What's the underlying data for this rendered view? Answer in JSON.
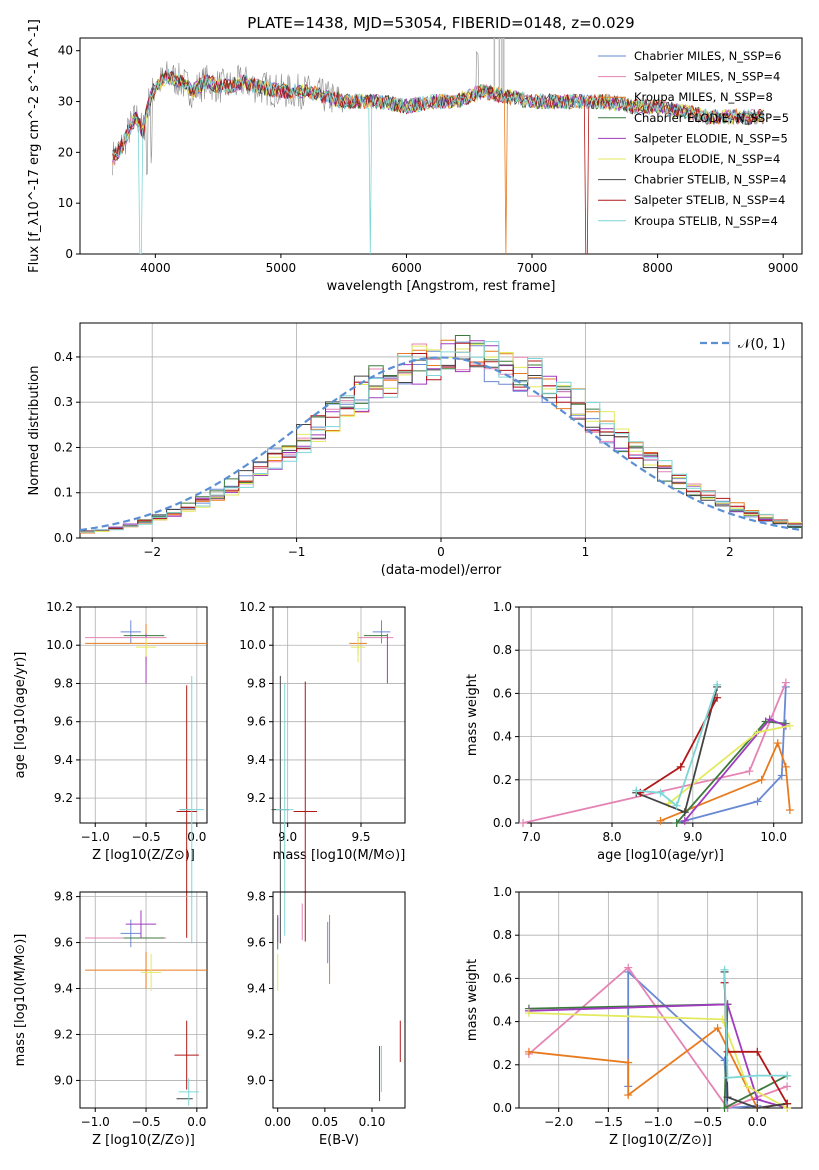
{
  "figure_title": "PLATE=1438, MJD=53054, FIBERID=0148, z=0.029",
  "series_colors": [
    "#6a89d3",
    "#e583b5",
    "#e87b1f",
    "#3c7a3c",
    "#a13bbf",
    "#e3ea5e",
    "#444444",
    "#b01818",
    "#7fd6d6"
  ],
  "chart_data": [
    {
      "type": "line",
      "panel": "spectrum",
      "xlabel": "wavelength [Angstrom, rest frame]",
      "ylabel": "Flux [f_λ10^-17 erg cm^-2 s^-1 A^-1]",
      "xlim": [
        3400,
        9150
      ],
      "ylim": [
        0,
        42.5
      ],
      "xticks": [
        4000,
        5000,
        6000,
        7000,
        8000,
        9000
      ],
      "yticks": [
        0,
        10,
        20,
        30,
        40
      ],
      "grid": false,
      "legend_position": "top-right",
      "series": [
        {
          "name": "Chabrier MILES, N_SSP=6"
        },
        {
          "name": "Salpeter MILES, N_SSP=4"
        },
        {
          "name": "Kroupa MILES, N_SSP=8"
        },
        {
          "name": "Chabrier ELODIE, N_SSP=5"
        },
        {
          "name": "Salpeter ELODIE, N_SSP=5"
        },
        {
          "name": "Kroupa ELODIE, N_SSP=4"
        },
        {
          "name": "Chabrier STELIB, N_SSP=4"
        },
        {
          "name": "Salpeter STELIB, N_SSP=4"
        },
        {
          "name": "Kroupa STELIB, N_SSP=4"
        }
      ],
      "continuum_x": [
        3660,
        3700,
        3750,
        3800,
        3850,
        3900,
        3950,
        4000,
        4100,
        4200,
        4300,
        4400,
        4500,
        4600,
        4700,
        4800,
        5000,
        5200,
        5500,
        5800,
        6000,
        6200,
        6400,
        6600,
        6800,
        7000,
        7200,
        7400,
        7600,
        7800,
        8000,
        8200,
        8400,
        8600,
        8800
      ],
      "continuum_y": [
        19,
        20,
        22,
        25,
        27,
        24,
        30,
        33,
        35,
        34,
        32,
        34,
        33,
        33,
        34,
        33,
        32,
        32,
        30,
        30,
        29,
        30,
        30,
        32,
        31,
        30,
        30,
        30,
        30,
        29,
        29,
        28,
        27,
        27,
        27
      ]
    },
    {
      "type": "line",
      "panel": "residual-distribution",
      "xlabel": "(data-model)/error",
      "ylabel": "Normed distribution",
      "xlim": [
        -2.5,
        2.5
      ],
      "ylim": [
        0,
        0.475
      ],
      "xticks": [
        -2,
        -1,
        0,
        1,
        2
      ],
      "yticks": [
        0.0,
        0.1,
        0.2,
        0.3,
        0.4
      ],
      "grid": true,
      "legend_position": "top-right",
      "gaussian_label": "𝒩(0, 1)"
    },
    {
      "type": "scatter",
      "panel": "age-vs-Z",
      "xlabel": "Z [log10(Z/Z⊙)]",
      "ylabel": "age  [log10(age/yr)]",
      "xlim": [
        -1.15,
        0.1
      ],
      "ylim": [
        9.07,
        10.2
      ],
      "xticks": [
        -1.0,
        -0.5,
        0.0
      ],
      "yticks": [
        9.2,
        9.4,
        9.6,
        9.8,
        10.0,
        10.2
      ],
      "grid": true,
      "points": [
        {
          "x": -0.65,
          "y": 10.07,
          "xerr": 0.1,
          "yerr": 0.06
        },
        {
          "x": -0.7,
          "y": 10.04,
          "xerr": 0.4,
          "yerr": 0.0
        },
        {
          "x": -0.5,
          "y": 10.01,
          "xerr": 0.6,
          "yerr": 0.1
        },
        {
          "x": -0.52,
          "y": 10.05,
          "xerr": 0.2,
          "yerr": 0.0
        },
        {
          "x": -0.5,
          "y": 9.93,
          "xerr": 0.0,
          "yerr": 0.13
        },
        {
          "x": -0.5,
          "y": 9.99,
          "xerr": 0.1,
          "yerr": 0.05
        },
        {
          "x": -0.12,
          "y": 9.14,
          "xerr": 0.05,
          "yerr": 0.0
        },
        {
          "x": -0.1,
          "y": 9.13,
          "xerr": 0.1,
          "yerr": 0.66
        },
        {
          "x": -0.05,
          "y": 9.14,
          "xerr": 0.12,
          "yerr": 0.7
        }
      ]
    },
    {
      "type": "scatter",
      "panel": "age-vs-mass",
      "xlabel": "mass [log10(M/M⊙)]",
      "ylabel": "",
      "xlim": [
        8.9,
        9.8
      ],
      "ylim": [
        9.07,
        10.2
      ],
      "xticks": [
        9.0,
        9.5
      ],
      "yticks": [
        9.2,
        9.4,
        9.6,
        9.8,
        10.0,
        10.2
      ],
      "grid": true,
      "points": [
        {
          "x": 9.64,
          "y": 10.07,
          "xerr": 0.06,
          "yerr": 0.06
        },
        {
          "x": 9.6,
          "y": 10.04,
          "xerr": 0.12,
          "yerr": 0.0
        },
        {
          "x": 9.48,
          "y": 10.01,
          "xerr": 0.06,
          "yerr": 0.06
        },
        {
          "x": 9.6,
          "y": 10.05,
          "xerr": 0.08,
          "yerr": 0.0
        },
        {
          "x": 9.68,
          "y": 9.93,
          "xerr": 0.0,
          "yerr": 0.13
        },
        {
          "x": 9.48,
          "y": 9.99,
          "xerr": 0.05,
          "yerr": 0.08
        },
        {
          "x": 8.95,
          "y": 9.14,
          "xerr": 0.06,
          "yerr": 0.7
        },
        {
          "x": 9.12,
          "y": 9.13,
          "xerr": 0.08,
          "yerr": 0.68
        },
        {
          "x": 8.98,
          "y": 9.14,
          "xerr": 0.06,
          "yerr": 0.66
        }
      ]
    },
    {
      "type": "line",
      "panel": "weight-vs-age",
      "xlabel": "age  [log10(age/yr)]",
      "ylabel": "mass weight",
      "xlim": [
        6.85,
        10.35
      ],
      "ylim": [
        0,
        1.0
      ],
      "xticks": [
        7,
        8,
        9,
        10
      ],
      "yticks": [
        0.0,
        0.2,
        0.4,
        0.6,
        0.8,
        1.0
      ],
      "grid": true,
      "series": [
        {
          "x": [
            8.8,
            9.8,
            10.1,
            10.15
          ],
          "y": [
            0.0,
            0.1,
            0.22,
            0.63
          ]
        },
        {
          "x": [
            6.9,
            9.7,
            10.15
          ],
          "y": [
            0.0,
            0.24,
            0.65
          ]
        },
        {
          "x": [
            8.6,
            9.85,
            10.05,
            10.15,
            10.2
          ],
          "y": [
            0.01,
            0.2,
            0.37,
            0.26,
            0.06
          ]
        },
        {
          "x": [
            8.8,
            9.9,
            10.15
          ],
          "y": [
            0.0,
            0.47,
            0.46
          ]
        },
        {
          "x": [
            8.9,
            9.95,
            10.15
          ],
          "y": [
            0.01,
            0.48,
            0.45
          ]
        },
        {
          "x": [
            8.7,
            9.8,
            10.2
          ],
          "y": [
            0.09,
            0.42,
            0.45
          ]
        },
        {
          "x": [
            8.3,
            8.9,
            9.3
          ],
          "y": [
            0.14,
            0.05,
            0.63
          ]
        },
        {
          "x": [
            8.35,
            8.85,
            9.3
          ],
          "y": [
            0.14,
            0.26,
            0.58
          ]
        },
        {
          "x": [
            8.3,
            8.6,
            8.8,
            9.3
          ],
          "y": [
            0.15,
            0.14,
            0.08,
            0.64
          ]
        }
      ]
    },
    {
      "type": "scatter",
      "panel": "mass-vs-Z",
      "xlabel": "Z [log10(Z/Z⊙)]",
      "ylabel": "mass [log10(M/M⊙)]",
      "xlim": [
        -1.15,
        0.1
      ],
      "ylim": [
        8.88,
        9.82
      ],
      "xticks": [
        -1.0,
        -0.5,
        0.0
      ],
      "yticks": [
        9.0,
        9.2,
        9.4,
        9.6,
        9.8
      ],
      "grid": true,
      "points": [
        {
          "x": -0.65,
          "y": 9.64,
          "xerr": 0.1,
          "yerr": 0.06
        },
        {
          "x": -0.7,
          "y": 9.62,
          "xerr": 0.4,
          "yerr": 0.0
        },
        {
          "x": -0.5,
          "y": 9.48,
          "xerr": 0.6,
          "yerr": 0.08
        },
        {
          "x": -0.52,
          "y": 9.62,
          "xerr": 0.2,
          "yerr": 0.0
        },
        {
          "x": -0.55,
          "y": 9.68,
          "xerr": 0.15,
          "yerr": 0.06
        },
        {
          "x": -0.45,
          "y": 9.47,
          "xerr": 0.1,
          "yerr": 0.08
        },
        {
          "x": -0.12,
          "y": 8.92,
          "xerr": 0.08,
          "yerr": 0.0
        },
        {
          "x": -0.1,
          "y": 9.11,
          "xerr": 0.12,
          "yerr": 0.15
        },
        {
          "x": -0.08,
          "y": 8.95,
          "xerr": 0.1,
          "yerr": 0.06
        }
      ]
    },
    {
      "type": "scatter",
      "panel": "mass-vs-EBV",
      "xlabel": "E(B-V)",
      "ylabel": "",
      "xlim": [
        -0.005,
        0.135
      ],
      "ylim": [
        8.88,
        9.82
      ],
      "xticks": [
        0.0,
        0.05,
        0.1
      ],
      "yticks": [
        9.0,
        9.2,
        9.4,
        9.6,
        9.8
      ],
      "grid": false,
      "points": [
        {
          "x": 0.053,
          "y": 9.6,
          "yerr": 0.09
        },
        {
          "x": 0.026,
          "y": 9.69,
          "yerr": 0.08
        },
        {
          "x": 0.055,
          "y": 9.57,
          "yerr": 0.15
        },
        {
          "x": 0.0,
          "y": 9.64,
          "yerr": 0.07
        },
        {
          "x": 0.0,
          "y": 9.66,
          "yerr": 0.06
        },
        {
          "x": 0.0,
          "y": 9.47,
          "yerr": 0.08
        },
        {
          "x": 0.108,
          "y": 9.03,
          "yerr": 0.12
        },
        {
          "x": 0.13,
          "y": 9.17,
          "yerr": 0.09
        },
        {
          "x": 0.11,
          "y": 9.05,
          "yerr": 0.1
        }
      ]
    },
    {
      "type": "line",
      "panel": "weight-vs-Z",
      "xlabel": "Z [log10(Z/Z⊙)]",
      "ylabel": "mass weight",
      "xlim": [
        -2.4,
        0.45
      ],
      "ylim": [
        0,
        1.0
      ],
      "xticks": [
        -2.0,
        -1.5,
        -1.0,
        -0.5,
        0.0
      ],
      "yticks": [
        0.0,
        0.2,
        0.4,
        0.6,
        0.8,
        1.0
      ],
      "grid": true,
      "series": [
        {
          "x": [
            -1.3,
            -1.3,
            -0.33,
            -0.3,
            0.0
          ],
          "y": [
            0.1,
            0.63,
            0.22,
            0.0,
            0.01
          ]
        },
        {
          "x": [
            -2.3,
            -1.3,
            -0.3,
            0.3
          ],
          "y": [
            0.25,
            0.65,
            0.0,
            0.1
          ]
        },
        {
          "x": [
            -2.3,
            -1.3,
            -1.3,
            -0.4,
            0.0,
            0.3
          ],
          "y": [
            0.26,
            0.21,
            0.06,
            0.37,
            0.0,
            0.02
          ]
        },
        {
          "x": [
            -2.3,
            -0.3,
            -0.33,
            0.3
          ],
          "y": [
            0.46,
            0.48,
            0.0,
            0.15
          ]
        },
        {
          "x": [
            -2.3,
            -0.3,
            0.0,
            0.3
          ],
          "y": [
            0.45,
            0.48,
            0.04,
            0.0
          ]
        },
        {
          "x": [
            -2.3,
            -0.35,
            -0.1,
            0.3
          ],
          "y": [
            0.44,
            0.41,
            0.1,
            0.0
          ]
        },
        {
          "x": [
            -0.33,
            -0.3,
            0.0,
            0.3
          ],
          "y": [
            0.63,
            0.05,
            0.0,
            0.02
          ]
        },
        {
          "x": [
            -0.33,
            -0.3,
            0.0,
            0.3
          ],
          "y": [
            0.58,
            0.26,
            0.26,
            0.02
          ]
        },
        {
          "x": [
            -0.33,
            -0.3,
            0.0,
            0.3
          ],
          "y": [
            0.64,
            0.14,
            0.15,
            0.15
          ]
        }
      ]
    }
  ]
}
